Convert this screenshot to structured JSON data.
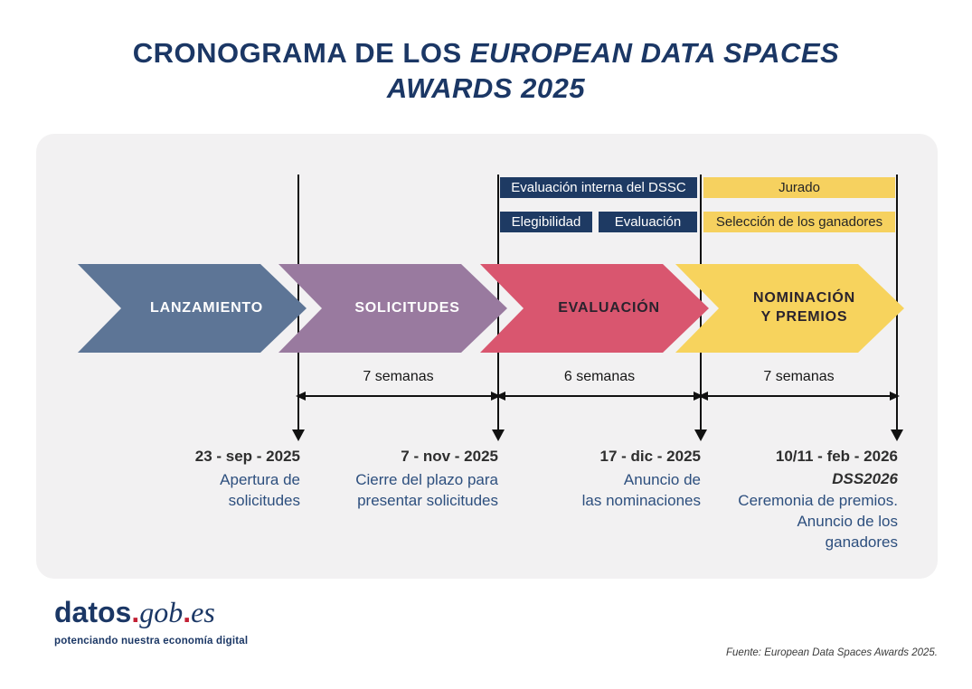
{
  "title": {
    "regular": "CRONOGRAMA DE LOS",
    "italic_line1": "EUROPEAN DATA SPACES",
    "italic_line2": "AWARDS 2025"
  },
  "colors": {
    "title_navy": "#1b3765",
    "panel_bg": "#f2f1f2",
    "bar_navy": "#1e3a63",
    "bar_yellow": "#f6d15f",
    "phase_launch": "#5d7596",
    "phase_applications": "#997a9f",
    "phase_evaluation": "#d9566f",
    "phase_awards": "#f7d35d",
    "description_blue": "#2d4f7e",
    "logo_red": "#c22135"
  },
  "sub_phases": {
    "dssc": "Evaluación interna del DSSC",
    "jury": "Jurado",
    "eligibility": "Elegibilidad",
    "evaluation": "Evaluación",
    "selection": "Selección de los ganadores"
  },
  "phases": [
    {
      "label": "LANZAMIENTO"
    },
    {
      "label": "SOLICITUDES"
    },
    {
      "label": "EVALUACIÓN"
    },
    {
      "label": "NOMINACIÓN\nY PREMIOS"
    }
  ],
  "durations": [
    "7 semanas",
    "6 semanas",
    "7 semanas"
  ],
  "milestones": [
    {
      "date": "23 - sep - 2025",
      "description": "Apertura de\nsolicitudes"
    },
    {
      "date": "7 - nov - 2025",
      "description": "Cierre del plazo para\npresentar solicitudes"
    },
    {
      "date": "17 - dic - 2025",
      "description": "Anuncio de\nlas nominaciones"
    },
    {
      "date": "10/11 - feb - 2026",
      "event": "DSS2026",
      "description": "Ceremonia de premios.\nAnuncio de los\nganadores"
    }
  ],
  "footer": {
    "logo_part1": "datos",
    "logo_dot1": ".",
    "logo_part2": "gob",
    "logo_dot2": ".",
    "logo_part3": "es",
    "tagline": "potenciando nuestra economía digital",
    "source": "Fuente: European Data Spaces Awards 2025."
  }
}
